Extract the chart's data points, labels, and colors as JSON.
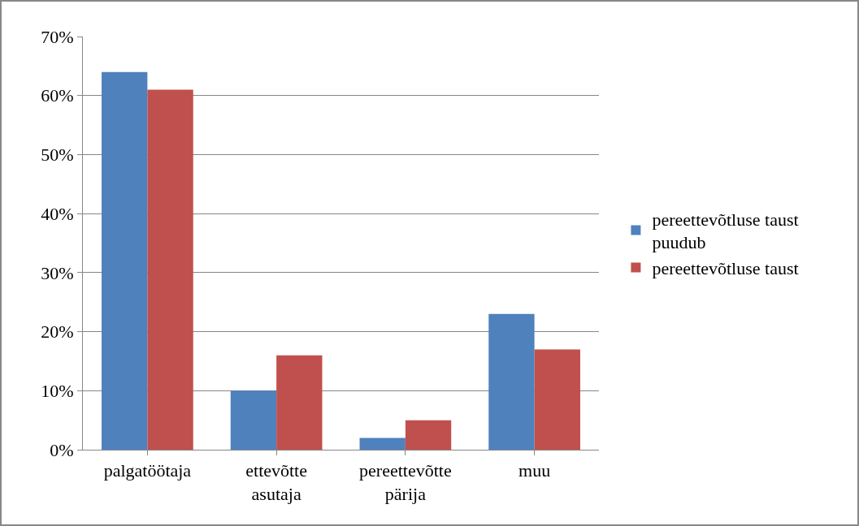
{
  "chart_data": {
    "type": "bar",
    "categories": [
      "palgatöötaja",
      "ettevõtte\nasutaja",
      "pereettevõtte\npärija",
      "muu"
    ],
    "series": [
      {
        "name": "pereettevõtluse taust\npuudub",
        "color": "#4f81bd",
        "values": [
          64,
          10,
          2,
          23
        ]
      },
      {
        "name": "pereettevõtluse taust",
        "color": "#c0504d",
        "values": [
          61,
          16,
          5,
          17
        ]
      }
    ],
    "ylim": [
      0,
      70
    ],
    "yticks": [
      {
        "value": 0,
        "label": "0%"
      },
      {
        "value": 10,
        "label": "10%"
      },
      {
        "value": 20,
        "label": "20%"
      },
      {
        "value": 30,
        "label": "30%"
      },
      {
        "value": 40,
        "label": "40%"
      },
      {
        "value": 50,
        "label": "50%"
      },
      {
        "value": 60,
        "label": "60%"
      },
      {
        "value": 70,
        "label": "70%"
      }
    ],
    "grid": "y",
    "legend": "right"
  }
}
